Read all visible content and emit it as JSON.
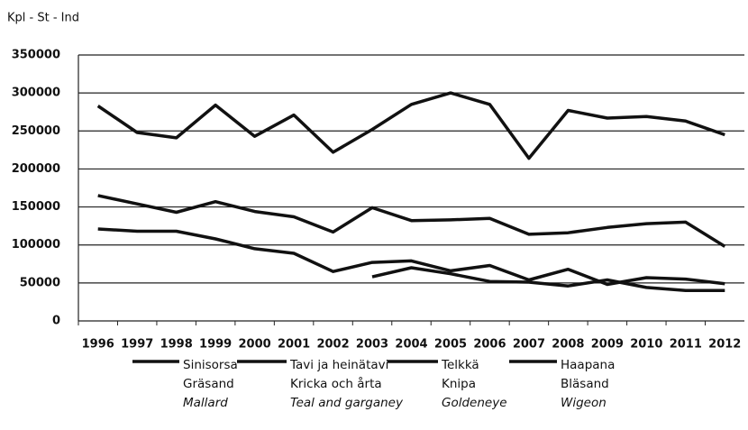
{
  "chart_data": {
    "type": "line",
    "y_axis_label": "Kpl - St - Ind",
    "categories": [
      "1996",
      "1997",
      "1998",
      "1999",
      "2000",
      "2001",
      "2002",
      "2003",
      "2004",
      "2005",
      "2006",
      "2007",
      "2008",
      "2009",
      "2010",
      "2011",
      "2012"
    ],
    "series": [
      {
        "name": "Sinisorsa",
        "name_sv": "Gräsand",
        "name_en": "Mallard",
        "color": "#111111",
        "values": [
          283000,
          248000,
          241000,
          284000,
          243000,
          271000,
          222000,
          252000,
          285000,
          300000,
          285000,
          214000,
          277000,
          267000,
          269000,
          263000,
          245000
        ]
      },
      {
        "name": "Tavi ja heinätavi",
        "name_sv": "Kricka och årta",
        "name_en": "Teal and garganey",
        "color": "#111111",
        "values": [
          165000,
          154000,
          143000,
          157000,
          144000,
          137000,
          117000,
          149000,
          132000,
          133000,
          135000,
          114000,
          116000,
          123000,
          128000,
          130000,
          98000
        ]
      },
      {
        "name": "Telkkä",
        "name_sv": "Knipa",
        "name_en": "Goldeneye",
        "color": "#111111",
        "values": [
          121000,
          118000,
          118000,
          108000,
          95000,
          89000,
          65000,
          77000,
          79000,
          66000,
          73000,
          54000,
          68000,
          48000,
          57000,
          55000,
          49000
        ]
      },
      {
        "name": "Haapana",
        "name_sv": "Bläsand",
        "name_en": "Wigeon",
        "color": "#111111",
        "values": [
          null,
          null,
          null,
          null,
          null,
          null,
          null,
          58000,
          70000,
          62000,
          52000,
          51000,
          46000,
          54000,
          44000,
          40000,
          40000
        ]
      }
    ],
    "ylim": [
      0,
      350000
    ],
    "yticks": [
      0,
      50000,
      100000,
      150000,
      200000,
      250000,
      300000,
      350000
    ],
    "grid": true
  }
}
